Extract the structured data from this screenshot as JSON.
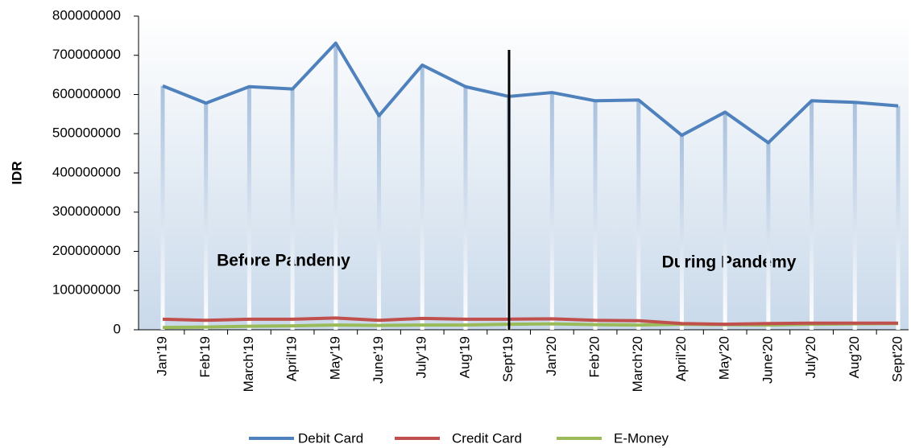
{
  "chart_data": {
    "type": "line",
    "y_label": "IDR",
    "categories": [
      "Jan'19",
      "Feb'19",
      "March'19",
      "April'19",
      "May'19",
      "June'19",
      "July'19",
      "Aug'19",
      "Sept'19",
      "Jan'20",
      "Feb'20",
      "March'20",
      "April'20",
      "May'20",
      "June'20",
      "July'20",
      "Aug'20",
      "Sept'20"
    ],
    "series": [
      {
        "name": "Debit Card",
        "color": "#4f81bd",
        "values": [
          622000000,
          578000000,
          620000000,
          614000000,
          731000000,
          546000000,
          675000000,
          620000000,
          595000000,
          605000000,
          584000000,
          586000000,
          496000000,
          555000000,
          477000000,
          584000000,
          580000000,
          571000000
        ]
      },
      {
        "name": "Credit Card",
        "color": "#c0504d",
        "values": [
          27000000,
          24000000,
          27000000,
          27000000,
          30000000,
          24000000,
          29000000,
          27000000,
          27000000,
          28000000,
          24000000,
          23000000,
          16000000,
          14000000,
          16000000,
          17000000,
          17000000,
          17000000
        ]
      },
      {
        "name": "E-Money",
        "color": "#9bbb59",
        "values": [
          6000000,
          7000000,
          9000000,
          10000000,
          12000000,
          11000000,
          12000000,
          12000000,
          14000000,
          15000000,
          13000000,
          12000000,
          14000000,
          13000000,
          12000000,
          14000000,
          15000000,
          16000000
        ]
      }
    ],
    "ylim": [
      0,
      800000000
    ],
    "yticks": [
      0,
      100000000,
      200000000,
      300000000,
      400000000,
      500000000,
      600000000,
      700000000,
      800000000
    ],
    "annotations": [
      "Before Pandemy",
      "During Pandemy"
    ],
    "legend": "bottom"
  }
}
